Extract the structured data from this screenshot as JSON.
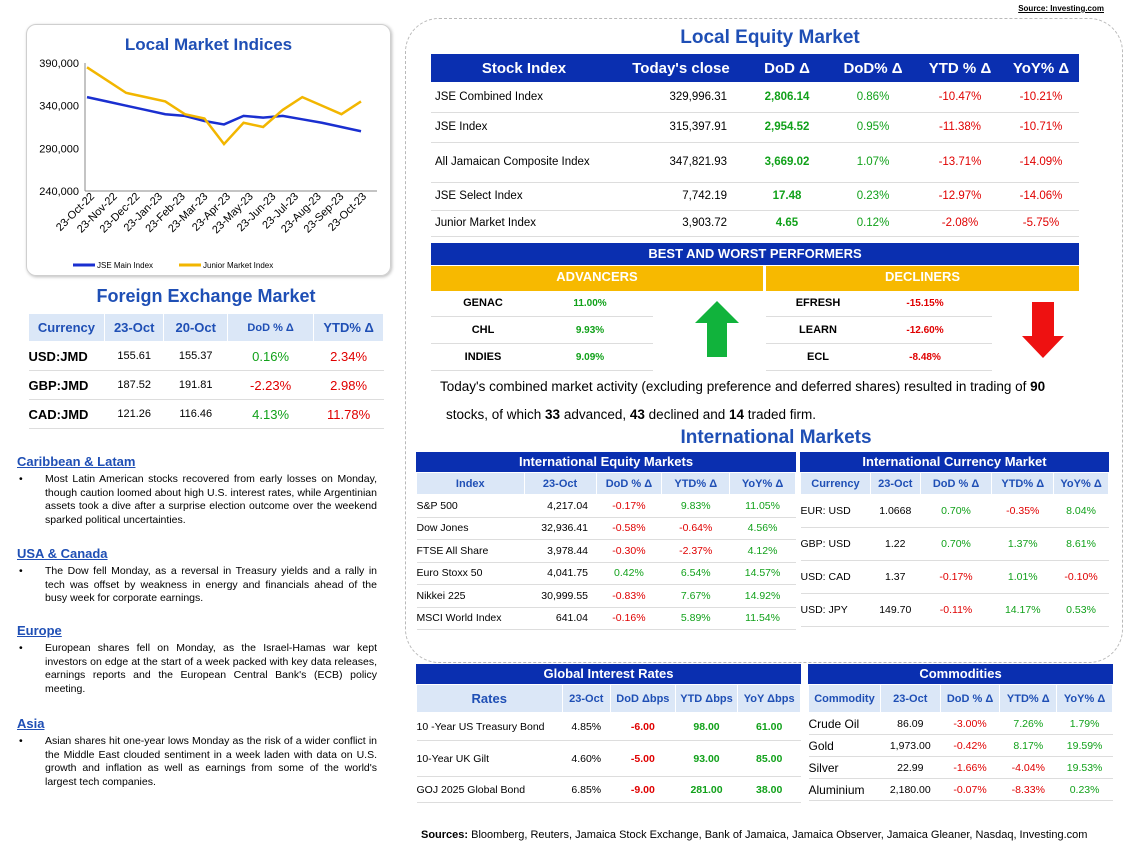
{
  "source_top": "Source: Investing.com",
  "chart_title": "Local Market Indices",
  "chart_data": {
    "type": "line",
    "title": "Local Market Indices",
    "y_ticks": [
      "390,000",
      "340,000",
      "290,000",
      "240,000"
    ],
    "ylim": [
      240000,
      390000
    ],
    "x_ticks": [
      "23-Oct-22",
      "23-Nov-22",
      "23-Dec-22",
      "23-Jan-23",
      "23-Feb-23",
      "23-Mar-23",
      "23-Apr-23",
      "23-May-23",
      "23-Jun-23",
      "23-Jul-23",
      "23-Aug-23",
      "23-Sep-23",
      "23-Oct-23"
    ],
    "series": [
      {
        "name": "JSE Main Index",
        "color": "#1a2fd0",
        "values": [
          350000,
          345000,
          340000,
          335000,
          330000,
          328000,
          322000,
          318000,
          328000,
          326000,
          328000,
          324000,
          320000,
          315000,
          310000
        ]
      },
      {
        "name": "Junior Market Index",
        "color": "#f2b600",
        "values": [
          385000,
          370000,
          355000,
          350000,
          345000,
          330000,
          325000,
          295000,
          320000,
          315000,
          335000,
          350000,
          340000,
          330000,
          345000
        ]
      }
    ],
    "legend_position": "bottom"
  },
  "fx": {
    "title": "Foreign Exchange Market",
    "headers": [
      "Currency",
      "23-Oct",
      "20-Oct",
      "DoD % Δ",
      "YTD% Δ"
    ],
    "rows": [
      [
        "USD:JMD",
        "155.61",
        "155.37",
        "0.16%",
        "2.34%"
      ],
      [
        "GBP:JMD",
        "187.52",
        "191.81",
        "-2.23%",
        "2.98%"
      ],
      [
        "CAD:JMD",
        "121.26",
        "116.46",
        "4.13%",
        "11.78%"
      ]
    ]
  },
  "news": [
    {
      "head": "Caribbean & Latam",
      "body": "Most Latin American stocks recovered from early losses on Monday, though caution loomed about high U.S. interest rates, while Argentinian assets took a dive after a surprise election outcome over the weekend sparked political uncertainties."
    },
    {
      "head": "USA & Canada",
      "body": "The Dow fell Monday, as a reversal in Treasury yields and a rally in tech was offset by weakness in energy and financials ahead of the busy week for corporate earnings."
    },
    {
      "head": "Europe",
      "body": "European shares fell on Monday, as the Israel-Hamas war kept investors on edge at the start of a week packed with key data releases, earnings reports and the European Central Bank's (ECB) policy meeting."
    },
    {
      "head": "Asia",
      "body": "Asian shares hit one-year lows Monday as the risk of a wider conflict in the Middle East clouded sentiment in a week laden with data on U.S. growth and inflation as well as earnings from some of the world's largest tech companies."
    }
  ],
  "equity": {
    "title": "Local Equity Market",
    "headers": [
      "Stock Index",
      "Today's close",
      "DoD  Δ",
      "DoD% Δ",
      "YTD % Δ",
      "YoY% Δ"
    ],
    "rows": [
      [
        "JSE Combined Index",
        "329,996.31",
        "2,806.14",
        "0.86%",
        "-10.47%",
        "-10.21%"
      ],
      [
        "JSE Index",
        "315,397.91",
        "2,954.52",
        "0.95%",
        "-11.38%",
        "-10.71%"
      ],
      [
        "All Jamaican Composite Index",
        "347,821.93",
        "3,669.02",
        "1.07%",
        "-13.71%",
        "-14.09%"
      ],
      [
        "JSE Select Index",
        "7,742.19",
        "17.48",
        "0.23%",
        "-12.97%",
        "-14.06%"
      ],
      [
        "Junior Market Index",
        "3,903.72",
        "4.65",
        "0.12%",
        "-2.08%",
        "-5.75%"
      ]
    ]
  },
  "performers": {
    "title": "BEST AND WORST PERFORMERS",
    "adv_label": "ADVANCERS",
    "dec_label": "DECLINERS",
    "advancers": [
      [
        "GENAC",
        "11.00%"
      ],
      [
        "CHL",
        "9.93%"
      ],
      [
        "INDIES",
        "9.09%"
      ]
    ],
    "decliners": [
      [
        "EFRESH",
        "-15.15%"
      ],
      [
        "LEARN",
        "-12.60%"
      ],
      [
        "ECL",
        "-8.48%"
      ]
    ]
  },
  "summary": {
    "p1": "Today's combined market activity (excluding preference and deferred shares) resulted in trading of ",
    "n1": "90",
    "p2": "stocks, of which ",
    "n2": "33",
    "p3": " advanced, ",
    "n3": "43",
    "p4": " declined and ",
    "n4": "14",
    "p5": " traded firm."
  },
  "intl_title": "International Markets",
  "intl_equity": {
    "title": "International Equity Markets",
    "headers": [
      "Index",
      "23-Oct",
      "DoD % Δ",
      "YTD% Δ",
      "YoY% Δ"
    ],
    "rows": [
      [
        "S&P 500",
        "4,217.04",
        "-0.17%",
        "9.83%",
        "11.05%"
      ],
      [
        "Dow Jones",
        "32,936.41",
        "-0.58%",
        "-0.64%",
        "4.56%"
      ],
      [
        "FTSE All Share",
        "3,978.44",
        "-0.30%",
        "-2.37%",
        "4.12%"
      ],
      [
        "Euro Stoxx 50",
        "4,041.75",
        "0.42%",
        "6.54%",
        "14.57%"
      ],
      [
        "Nikkei 225",
        "30,999.55",
        "-0.83%",
        "7.67%",
        "14.92%"
      ],
      [
        "MSCI World Index",
        "641.04",
        "-0.16%",
        "5.89%",
        "11.54%"
      ]
    ]
  },
  "intl_currency": {
    "title": "International Currency Market",
    "headers": [
      "Currency",
      "23-Oct",
      "DoD % Δ",
      "YTD% Δ",
      "YoY% Δ"
    ],
    "rows": [
      [
        "EUR: USD",
        "1.0668",
        "0.70%",
        "-0.35%",
        "8.04%"
      ],
      [
        "GBP: USD",
        "1.22",
        "0.70%",
        "1.37%",
        "8.61%"
      ],
      [
        "USD: CAD",
        "1.37",
        "-0.17%",
        "1.01%",
        "-0.10%"
      ],
      [
        "USD: JPY",
        "149.70",
        "-0.11%",
        "14.17%",
        "0.53%"
      ]
    ]
  },
  "rates": {
    "title": "Global Interest Rates",
    "headers": [
      "Rates",
      "23-Oct",
      "DoD Δbps",
      "YTD Δbps",
      "YoY Δbps"
    ],
    "rows": [
      [
        "10 -Year US Treasury Bond",
        "4.85%",
        "-6.00",
        "98.00",
        "61.00"
      ],
      [
        "10-Year UK Gilt",
        "4.60%",
        "-5.00",
        "93.00",
        "85.00"
      ],
      [
        "GOJ 2025 Global Bond",
        "6.85%",
        "-9.00",
        "281.00",
        "38.00"
      ]
    ]
  },
  "commodities": {
    "title": "Commodities",
    "headers": [
      "Commodity",
      "23-Oct",
      "DoD % Δ",
      "YTD% Δ",
      "YoY% Δ"
    ],
    "rows": [
      [
        "Crude Oil",
        "86.09",
        "-3.00%",
        "7.26%",
        "1.79%"
      ],
      [
        "Gold",
        "1,973.00",
        "-0.42%",
        "8.17%",
        "19.59%"
      ],
      [
        "Silver",
        "22.99",
        "-1.66%",
        "-4.04%",
        "19.53%"
      ],
      [
        "Aluminium",
        "2,180.00",
        "-0.07%",
        "-8.33%",
        "0.23%"
      ]
    ]
  },
  "sources_label": "Sources:",
  "sources_text": " Bloomberg, Reuters, Jamaica Stock Exchange, Bank of Jamaica, Jamaica Observer, Jamaica Gleaner, Nasdaq, Investing.com"
}
